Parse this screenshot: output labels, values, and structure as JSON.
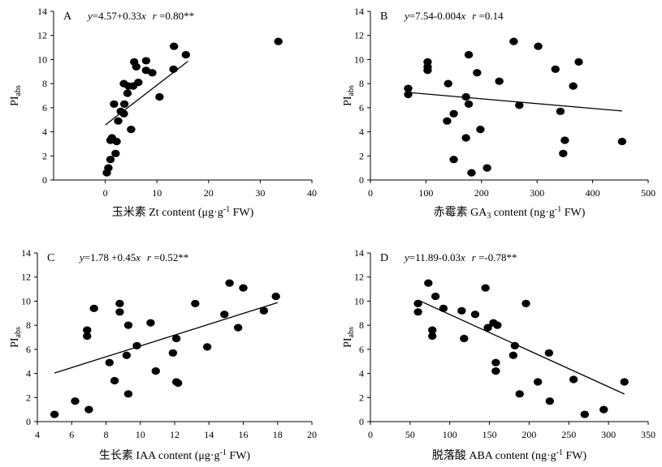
{
  "chart_data": [
    {
      "type": "scatter",
      "panel": "A",
      "equation": {
        "y_part": "y",
        "coef_part": "=4.57+0.33",
        "x_part": "x",
        "r_part": "r",
        "r_value": " =0.80**"
      },
      "xlabel": {
        "cn": "玉米素",
        "pre": " Zt content (μg·g",
        "sup": "-1",
        "post": " FW)"
      },
      "ylabel": {
        "main": "PI",
        "sub": "abs"
      },
      "xlim": [
        -10,
        40
      ],
      "ylim": [
        0,
        14
      ],
      "xticks": [
        "0",
        "10",
        "20",
        "30",
        "40"
      ],
      "yticks": [
        "0",
        "2",
        "4",
        "6",
        "8",
        "10",
        "12",
        "14"
      ],
      "fit": {
        "intercept": 4.57,
        "slope": 0.33,
        "x_range": [
          0,
          16
        ]
      },
      "points": [
        {
          "x": 0.3,
          "y": 0.6
        },
        {
          "x": 0.6,
          "y": 1.0
        },
        {
          "x": 1.0,
          "y": 1.7
        },
        {
          "x": 1.0,
          "y": 3.3
        },
        {
          "x": 1.3,
          "y": 3.5
        },
        {
          "x": 2.0,
          "y": 2.2
        },
        {
          "x": 2.2,
          "y": 3.2
        },
        {
          "x": 1.7,
          "y": 6.3
        },
        {
          "x": 2.5,
          "y": 4.9
        },
        {
          "x": 3.0,
          "y": 5.7
        },
        {
          "x": 3.6,
          "y": 5.5
        },
        {
          "x": 3.7,
          "y": 6.3
        },
        {
          "x": 3.6,
          "y": 8.0
        },
        {
          "x": 4.3,
          "y": 7.2
        },
        {
          "x": 4.5,
          "y": 7.8
        },
        {
          "x": 5.0,
          "y": 4.2
        },
        {
          "x": 5.4,
          "y": 7.8
        },
        {
          "x": 5.6,
          "y": 9.8
        },
        {
          "x": 6.0,
          "y": 9.4
        },
        {
          "x": 6.4,
          "y": 8.1
        },
        {
          "x": 7.9,
          "y": 9.9
        },
        {
          "x": 7.9,
          "y": 9.1
        },
        {
          "x": 9.1,
          "y": 8.9
        },
        {
          "x": 10.5,
          "y": 6.9
        },
        {
          "x": 13.3,
          "y": 11.1
        },
        {
          "x": 13.2,
          "y": 9.2
        },
        {
          "x": 15.6,
          "y": 10.4
        },
        {
          "x": 33.5,
          "y": 11.5
        }
      ]
    },
    {
      "type": "scatter",
      "panel": "B",
      "equation": {
        "y_part": "y",
        "coef_part": "=7.54-0.004",
        "x_part": "x",
        "r_part": "r",
        "r_value": " =0.14"
      },
      "xlabel": {
        "cn": "赤霉素",
        "pre": " GA",
        "sub": "3",
        "post": " content (ng·g",
        "sup": "-1",
        "post2": " FW)"
      },
      "ylabel": {
        "main": "PI",
        "sub": "abs"
      },
      "xlim": [
        0,
        500
      ],
      "ylim": [
        0,
        14
      ],
      "xticks": [
        "0",
        "100",
        "200",
        "300",
        "400",
        "500"
      ],
      "yticks": [
        "0",
        "2",
        "4",
        "6",
        "8",
        "10",
        "12",
        "14"
      ],
      "fit": {
        "intercept": 7.54,
        "slope": -0.004,
        "x_range": [
          68,
          453
        ]
      },
      "points": [
        {
          "x": 68,
          "y": 7.6
        },
        {
          "x": 68,
          "y": 7.1
        },
        {
          "x": 103,
          "y": 9.8
        },
        {
          "x": 103,
          "y": 9.4
        },
        {
          "x": 103,
          "y": 9.1
        },
        {
          "x": 140,
          "y": 8.0
        },
        {
          "x": 138,
          "y": 4.9
        },
        {
          "x": 150,
          "y": 5.5
        },
        {
          "x": 150,
          "y": 1.7
        },
        {
          "x": 172,
          "y": 6.9
        },
        {
          "x": 172,
          "y": 3.5
        },
        {
          "x": 177,
          "y": 6.3
        },
        {
          "x": 177,
          "y": 10.4
        },
        {
          "x": 182,
          "y": 0.6
        },
        {
          "x": 192,
          "y": 8.9
        },
        {
          "x": 198,
          "y": 4.2
        },
        {
          "x": 210,
          "y": 1.0
        },
        {
          "x": 232,
          "y": 8.2
        },
        {
          "x": 258,
          "y": 11.5
        },
        {
          "x": 268,
          "y": 6.2
        },
        {
          "x": 302,
          "y": 11.1
        },
        {
          "x": 333,
          "y": 9.2
        },
        {
          "x": 342,
          "y": 5.7
        },
        {
          "x": 347,
          "y": 2.2
        },
        {
          "x": 350,
          "y": 3.3
        },
        {
          "x": 365,
          "y": 7.8
        },
        {
          "x": 375,
          "y": 9.8
        },
        {
          "x": 453,
          "y": 3.2
        }
      ]
    },
    {
      "type": "scatter",
      "panel": "C",
      "equation": {
        "y_part": "y",
        "coef_part": "=1.78 +0.45",
        "x_part": "x",
        "r_part": "r",
        "r_value": " =0.52**"
      },
      "xlabel": {
        "cn": "生长素",
        "pre": " IAA content (μg·g",
        "sup": "-1",
        "post": " FW)"
      },
      "ylabel": {
        "main": "PI",
        "sub": "abs"
      },
      "xlim": [
        4,
        20
      ],
      "ylim": [
        0,
        14
      ],
      "xticks": [
        "4",
        "6",
        "8",
        "10",
        "12",
        "14",
        "16",
        "18",
        "20"
      ],
      "yticks": [
        "0",
        "2",
        "4",
        "6",
        "8",
        "10",
        "12",
        "14"
      ],
      "fit": {
        "intercept": 1.78,
        "slope": 0.45,
        "x_range": [
          5,
          18
        ]
      },
      "points": [
        {
          "x": 5.0,
          "y": 0.6
        },
        {
          "x": 6.2,
          "y": 1.7
        },
        {
          "x": 7.0,
          "y": 1.0
        },
        {
          "x": 6.9,
          "y": 7.6
        },
        {
          "x": 6.9,
          "y": 7.1
        },
        {
          "x": 7.3,
          "y": 9.4
        },
        {
          "x": 8.2,
          "y": 4.9
        },
        {
          "x": 8.5,
          "y": 3.4
        },
        {
          "x": 8.8,
          "y": 9.8
        },
        {
          "x": 8.8,
          "y": 9.1
        },
        {
          "x": 9.2,
          "y": 5.5
        },
        {
          "x": 9.3,
          "y": 8.0
        },
        {
          "x": 9.3,
          "y": 2.3
        },
        {
          "x": 9.8,
          "y": 6.3
        },
        {
          "x": 10.6,
          "y": 8.2
        },
        {
          "x": 10.9,
          "y": 4.2
        },
        {
          "x": 11.9,
          "y": 5.7
        },
        {
          "x": 12.1,
          "y": 6.9
        },
        {
          "x": 12.1,
          "y": 3.3
        },
        {
          "x": 12.2,
          "y": 3.2
        },
        {
          "x": 13.2,
          "y": 9.8
        },
        {
          "x": 13.9,
          "y": 6.2
        },
        {
          "x": 14.9,
          "y": 8.9
        },
        {
          "x": 15.2,
          "y": 11.5
        },
        {
          "x": 15.7,
          "y": 7.8
        },
        {
          "x": 16.0,
          "y": 11.1
        },
        {
          "x": 17.2,
          "y": 9.2
        },
        {
          "x": 17.9,
          "y": 10.4
        }
      ]
    },
    {
      "type": "scatter",
      "panel": "D",
      "equation": {
        "y_part": "y",
        "coef_part": "=11.89-0.03",
        "x_part": "x",
        "r_part": "r",
        "r_value": " =-0.78**"
      },
      "xlabel": {
        "cn": "脱落酸",
        "pre": " ABA content (ng·g",
        "sup": "-1",
        "post": " FW)"
      },
      "ylabel": {
        "main": "PI",
        "sub": "abs"
      },
      "xlim": [
        0,
        350
      ],
      "ylim": [
        0,
        14
      ],
      "xticks": [
        "0",
        "50",
        "100",
        "150",
        "200",
        "250",
        "300",
        "350"
      ],
      "yticks": [
        "0",
        "2",
        "4",
        "6",
        "8",
        "10",
        "12",
        "14"
      ],
      "fit": {
        "intercept": 11.89,
        "slope": -0.03,
        "x_range": [
          60,
          320
        ]
      },
      "points": [
        {
          "x": 60,
          "y": 9.8
        },
        {
          "x": 60,
          "y": 9.1
        },
        {
          "x": 73,
          "y": 11.5
        },
        {
          "x": 78,
          "y": 7.6
        },
        {
          "x": 78,
          "y": 7.1
        },
        {
          "x": 82,
          "y": 10.4
        },
        {
          "x": 92,
          "y": 9.4
        },
        {
          "x": 115,
          "y": 9.2
        },
        {
          "x": 118,
          "y": 6.9
        },
        {
          "x": 132,
          "y": 8.9
        },
        {
          "x": 145,
          "y": 11.1
        },
        {
          "x": 148,
          "y": 7.8
        },
        {
          "x": 155,
          "y": 8.2
        },
        {
          "x": 160,
          "y": 8.0
        },
        {
          "x": 158,
          "y": 4.9
        },
        {
          "x": 158,
          "y": 4.2
        },
        {
          "x": 182,
          "y": 6.3
        },
        {
          "x": 180,
          "y": 5.5
        },
        {
          "x": 188,
          "y": 2.3
        },
        {
          "x": 196,
          "y": 9.8
        },
        {
          "x": 211,
          "y": 3.3
        },
        {
          "x": 225,
          "y": 5.7
        },
        {
          "x": 226,
          "y": 1.7
        },
        {
          "x": 256,
          "y": 3.5
        },
        {
          "x": 270,
          "y": 0.6
        },
        {
          "x": 294,
          "y": 1.0
        },
        {
          "x": 320,
          "y": 3.3
        }
      ]
    }
  ]
}
